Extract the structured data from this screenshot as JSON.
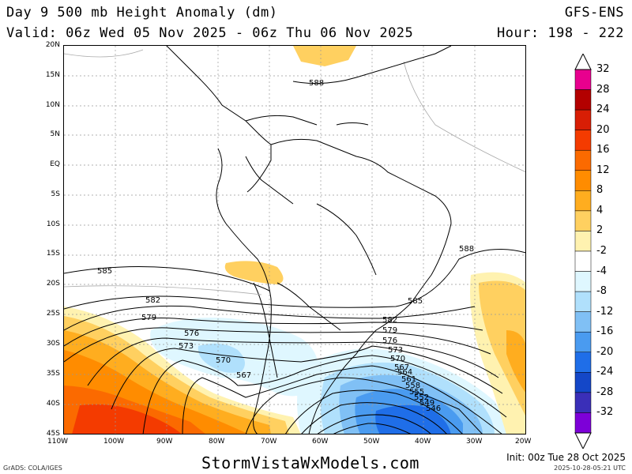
{
  "header": {
    "title": "Day 9 500 mb Height Anomaly (dm)",
    "model": "GFS-ENS",
    "valid": "Valid: 06z Wed 05 Nov 2025 - 06z Thu 06 Nov 2025",
    "hour": "Hour: 198 - 222"
  },
  "map": {
    "lat_labels": [
      "20N",
      "15N",
      "10N",
      "5N",
      "EQ",
      "5S",
      "10S",
      "15S",
      "20S",
      "25S",
      "30S",
      "35S",
      "40S",
      "45S"
    ],
    "lon_labels": [
      "110W",
      "100W",
      "90W",
      "80W",
      "70W",
      "60W",
      "50W",
      "40W",
      "30W",
      "20W"
    ],
    "contour_labels": [
      "588",
      "588",
      "585",
      "585",
      "582",
      "582",
      "579",
      "579",
      "576",
      "576",
      "573",
      "573",
      "570",
      "570",
      "567",
      "567",
      "564",
      "561",
      "558",
      "555",
      "552",
      "549",
      "546"
    ]
  },
  "colorbar": {
    "labels": [
      "32",
      "28",
      "24",
      "20",
      "16",
      "12",
      "8",
      "4",
      "2",
      "-2",
      "-4",
      "-8",
      "-12",
      "-16",
      "-20",
      "-24",
      "-28",
      "-32"
    ],
    "colors": [
      "#e8008e",
      "#b30000",
      "#d81e05",
      "#f43b00",
      "#fb6a00",
      "#ff8c00",
      "#ffad1f",
      "#ffd060",
      "#fff2b0",
      "#ffffff",
      "#dff7ff",
      "#b0e0fc",
      "#80c0f5",
      "#4a9bf0",
      "#1f6ee8",
      "#1447c8",
      "#3a2fb8",
      "#7d00d8"
    ],
    "pos_tip": "#ffffff",
    "neg_tip": "#ffffff"
  },
  "footer": {
    "website": "StormVistaWxModels.com",
    "init": "Init: 00z Tue 28 Oct 2025",
    "stamp": "2025-10-28-05:21 UTC",
    "credit": "GrADS: COLA/IGES"
  }
}
